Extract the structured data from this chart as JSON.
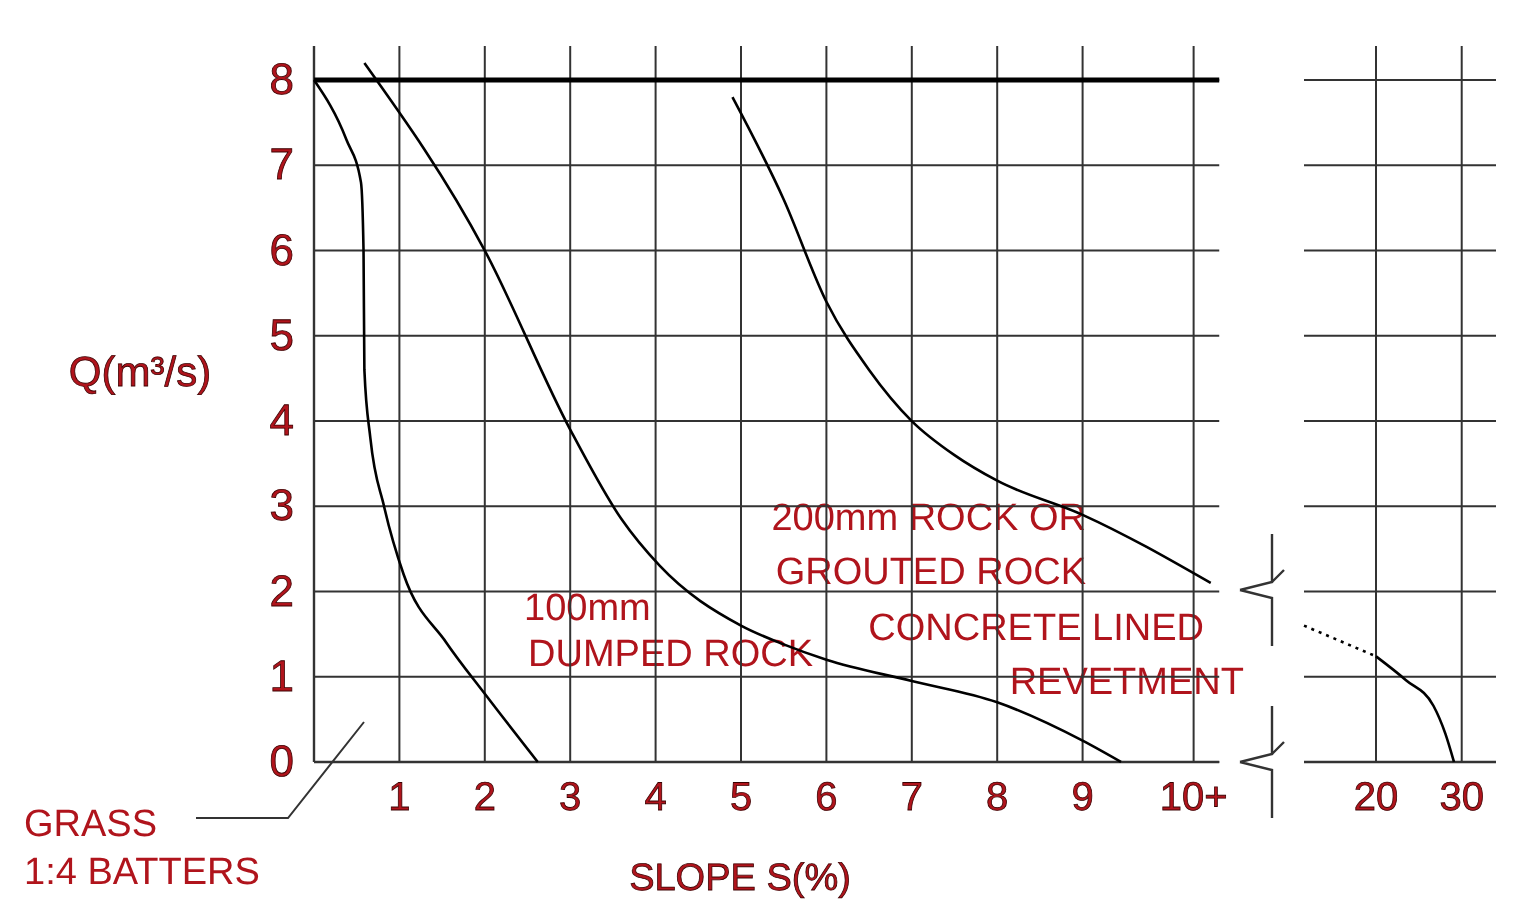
{
  "chart_data": [
    {
      "type": "line",
      "xlabel": "SLOPE S(%)",
      "ylabel": "Q(m³/s)",
      "xlim": [
        0,
        10.6
      ],
      "ylim": [
        0,
        8.4
      ],
      "xticks": [
        1,
        2,
        3,
        4,
        5,
        6,
        7,
        8,
        9,
        {
          "value": 10.3,
          "label": "10+"
        }
      ],
      "yticks": [
        0,
        1,
        2,
        3,
        4,
        5,
        6,
        7,
        8
      ],
      "grid": true,
      "legend": false,
      "marker": "none",
      "line_style": "solid",
      "ref_lines": [
        {
          "axis": "y",
          "value": 8,
          "color": "#000000"
        }
      ],
      "series": [
        {
          "name": "GRASS 1:4 BATTERS",
          "color": "#000000",
          "x": [
            0,
            0.38,
            0.55,
            0.58,
            0.59,
            0.66,
            0.82,
            1.05,
            1.55,
            2,
            2.62
          ],
          "values": [
            8,
            7.3,
            6.8,
            6,
            4.6,
            3.8,
            3,
            2.2,
            1.4,
            0.8,
            0
          ]
        },
        {
          "name": "100mm DUMPED ROCK",
          "color": "#000000",
          "x": [
            0.59,
            2,
            3,
            3.6,
            4.05,
            5,
            5.5,
            6,
            7,
            8,
            9,
            9.45
          ],
          "values": [
            8.2,
            6,
            3.9,
            2.85,
            2.3,
            1.6,
            1.38,
            1.2,
            0.95,
            0.7,
            0.25,
            0
          ]
        },
        {
          "name": "200mm ROCK OR GROUTED ROCK",
          "color": "#000000",
          "x": [
            4.9,
            5.5,
            6,
            6.5,
            7,
            7.5,
            8,
            9,
            10.5
          ],
          "values": [
            7.8,
            6.6,
            5.4,
            4.6,
            4,
            3.6,
            3.3,
            2.9,
            2.1
          ]
        }
      ]
    },
    {
      "type": "line",
      "xlim": [
        11.6,
        34
      ],
      "ylim": [
        0,
        8.4
      ],
      "xticks": [
        20,
        30
      ],
      "yticks": [
        0,
        1,
        2,
        3,
        4,
        5,
        6,
        7,
        8
      ],
      "grid": true,
      "legend": false,
      "marker": "none",
      "tick_labels": "x",
      "series": [
        {
          "color": "#000000",
          "line_style": "dotted",
          "x": [
            11.6,
            20
          ],
          "values": [
            1.6,
            1.24
          ]
        },
        {
          "name": "CONCRETE LINED REVETMENT",
          "color": "#000000",
          "line_style": "solid",
          "x": [
            20,
            23.5,
            26.7,
            28.1,
            29.1
          ],
          "values": [
            1.24,
            0.96,
            0.66,
            0.33,
            0
          ]
        }
      ]
    }
  ]
}
